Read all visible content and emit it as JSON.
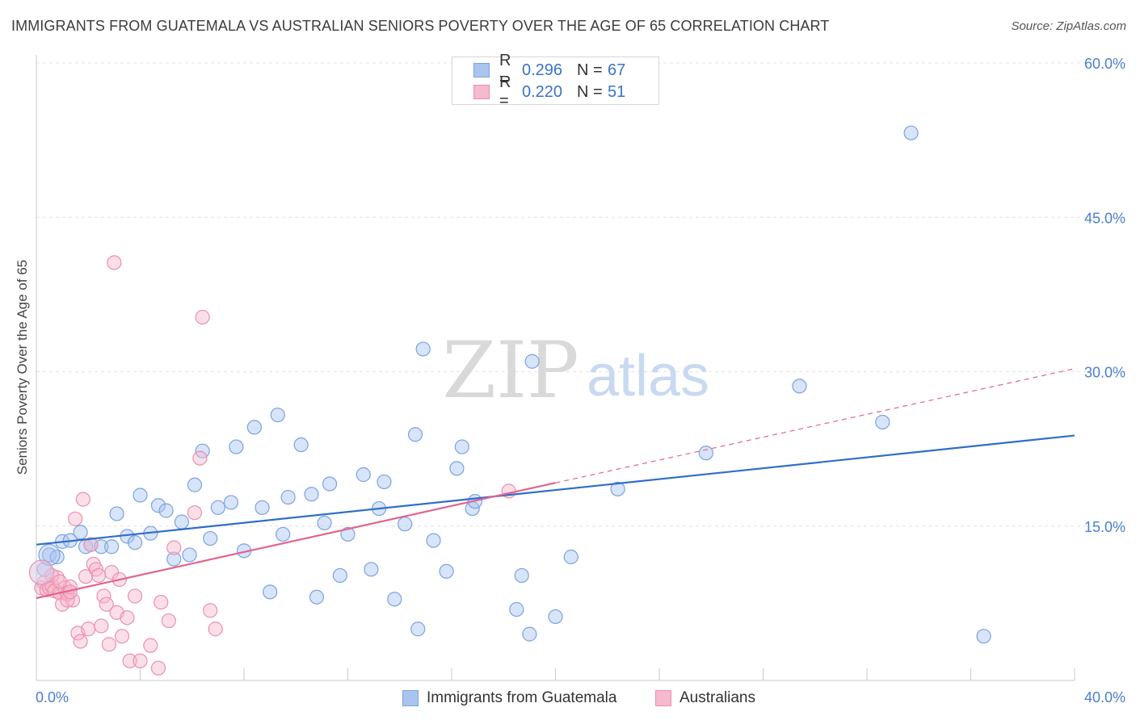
{
  "header": {
    "title": "IMMIGRANTS FROM GUATEMALA VS AUSTRALIAN SENIORS POVERTY OVER THE AGE OF 65 CORRELATION CHART",
    "source": "Source: ZipAtlas.com"
  },
  "watermark": {
    "zip": "ZIP",
    "atlas": "atlas"
  },
  "legend": {
    "rows": [
      {
        "r_label": "R =",
        "r_value": "0.296",
        "n_label": "N =",
        "n_value": "67",
        "color": "#a9c4ef",
        "border": "#7aa3e0"
      },
      {
        "r_label": "R =",
        "r_value": "0.220",
        "n_label": "N =",
        "n_value": "51",
        "color": "#f6b9cd",
        "border": "#ec8fae"
      }
    ]
  },
  "bottom_legend": [
    {
      "label": "Immigrants from Guatemala",
      "color": "#a9c4ef",
      "border": "#7aa3e0"
    },
    {
      "label": "Australians",
      "color": "#f6b9cd",
      "border": "#ec8fae"
    }
  ],
  "chart_data": {
    "type": "scatter",
    "title": "IMMIGRANTS FROM GUATEMALA VS AUSTRALIAN SENIORS POVERTY OVER THE AGE OF 65 CORRELATION CHART",
    "xlabel": "",
    "ylabel": "Seniors Poverty Over the Age of 65",
    "xlim": [
      0,
      40
    ],
    "ylim": [
      0,
      60
    ],
    "x_tick_labels": [
      {
        "value": 0,
        "label": "0.0%"
      },
      {
        "value": 40,
        "label": "40.0%"
      }
    ],
    "y_tick_labels": [
      {
        "value": 15,
        "label": "15.0%"
      },
      {
        "value": 30,
        "label": "30.0%"
      },
      {
        "value": 45,
        "label": "45.0%"
      },
      {
        "value": 60,
        "label": "60.0%"
      }
    ],
    "grid": true,
    "series": [
      {
        "name": "Immigrants from Guatemala",
        "color": "#a9c4ef",
        "stroke": "#7aa3e0",
        "line_color": "#2f6ec9",
        "trend": {
          "x0": 0,
          "y0": 13.2,
          "x1": 40,
          "y1": 23.8
        },
        "points": [
          [
            0.5,
            12.2
          ],
          [
            0.8,
            12.0
          ],
          [
            1.0,
            13.5
          ],
          [
            1.3,
            13.6
          ],
          [
            1.7,
            14.4
          ],
          [
            1.9,
            13.0
          ],
          [
            2.1,
            13.2
          ],
          [
            2.5,
            13.0
          ],
          [
            2.9,
            13.0
          ],
          [
            3.1,
            16.2
          ],
          [
            3.5,
            14.0
          ],
          [
            3.8,
            13.4
          ],
          [
            4.0,
            18.0
          ],
          [
            4.4,
            14.3
          ],
          [
            4.7,
            17.0
          ],
          [
            5.0,
            16.5
          ],
          [
            5.3,
            11.8
          ],
          [
            5.6,
            15.4
          ],
          [
            5.9,
            12.2
          ],
          [
            6.1,
            19.0
          ],
          [
            6.4,
            22.3
          ],
          [
            6.7,
            13.8
          ],
          [
            7.0,
            16.8
          ],
          [
            7.5,
            17.3
          ],
          [
            7.7,
            22.7
          ],
          [
            8.0,
            12.6
          ],
          [
            8.4,
            24.6
          ],
          [
            8.7,
            16.8
          ],
          [
            9.0,
            8.6
          ],
          [
            9.3,
            25.8
          ],
          [
            9.5,
            14.2
          ],
          [
            9.7,
            17.8
          ],
          [
            10.2,
            22.9
          ],
          [
            10.6,
            18.1
          ],
          [
            10.8,
            8.1
          ],
          [
            11.1,
            15.3
          ],
          [
            11.3,
            19.1
          ],
          [
            11.7,
            10.2
          ],
          [
            12.0,
            14.2
          ],
          [
            12.6,
            20.0
          ],
          [
            12.9,
            10.8
          ],
          [
            13.2,
            16.7
          ],
          [
            13.4,
            19.3
          ],
          [
            13.8,
            7.9
          ],
          [
            14.2,
            15.2
          ],
          [
            14.6,
            23.9
          ],
          [
            14.7,
            5.0
          ],
          [
            14.9,
            32.2
          ],
          [
            15.3,
            13.6
          ],
          [
            15.8,
            10.6
          ],
          [
            16.2,
            20.6
          ],
          [
            16.4,
            22.7
          ],
          [
            16.8,
            16.7
          ],
          [
            16.9,
            17.4
          ],
          [
            18.5,
            6.9
          ],
          [
            18.7,
            10.2
          ],
          [
            19.0,
            4.5
          ],
          [
            19.1,
            31.0
          ],
          [
            20.0,
            6.2
          ],
          [
            20.6,
            12.0
          ],
          [
            22.4,
            18.6
          ],
          [
            25.8,
            22.1
          ],
          [
            29.4,
            28.6
          ],
          [
            32.6,
            25.1
          ],
          [
            33.7,
            53.2
          ],
          [
            36.5,
            4.3
          ],
          [
            0.3,
            10.8
          ]
        ]
      },
      {
        "name": "Australians",
        "color": "#f6b9cd",
        "stroke": "#ec8fae",
        "line_color": "#e2648f",
        "trend": {
          "x0": 0,
          "y0": 8.0,
          "x1": 20,
          "y1": 19.2
        },
        "trend_extension": {
          "x0": 20,
          "y0": 19.2,
          "x1": 40,
          "y1": 30.3
        },
        "points": [
          [
            0.2,
            9.0
          ],
          [
            0.3,
            9.5
          ],
          [
            0.4,
            8.8
          ],
          [
            0.5,
            9.0
          ],
          [
            0.6,
            9.2
          ],
          [
            0.7,
            8.7
          ],
          [
            0.8,
            10.0
          ],
          [
            0.9,
            8.5
          ],
          [
            1.0,
            7.4
          ],
          [
            1.1,
            9.0
          ],
          [
            1.2,
            8.4
          ],
          [
            1.3,
            9.1
          ],
          [
            1.4,
            7.8
          ],
          [
            1.5,
            15.7
          ],
          [
            1.6,
            4.6
          ],
          [
            1.7,
            3.8
          ],
          [
            1.8,
            17.6
          ],
          [
            1.9,
            10.1
          ],
          [
            2.0,
            5.0
          ],
          [
            2.1,
            13.2
          ],
          [
            2.2,
            11.3
          ],
          [
            2.3,
            10.8
          ],
          [
            2.4,
            10.2
          ],
          [
            2.5,
            5.3
          ],
          [
            2.6,
            8.2
          ],
          [
            2.7,
            7.4
          ],
          [
            2.8,
            3.5
          ],
          [
            2.9,
            10.5
          ],
          [
            3.0,
            40.6
          ],
          [
            3.1,
            6.6
          ],
          [
            3.2,
            9.8
          ],
          [
            3.3,
            4.3
          ],
          [
            3.5,
            6.1
          ],
          [
            3.6,
            1.9
          ],
          [
            3.8,
            8.2
          ],
          [
            4.0,
            1.9
          ],
          [
            4.4,
            3.4
          ],
          [
            4.7,
            1.2
          ],
          [
            4.8,
            7.6
          ],
          [
            5.1,
            5.8
          ],
          [
            5.3,
            12.9
          ],
          [
            6.1,
            16.3
          ],
          [
            6.3,
            21.6
          ],
          [
            6.4,
            35.3
          ],
          [
            6.7,
            6.8
          ],
          [
            6.9,
            5.0
          ],
          [
            0.6,
            10.2
          ],
          [
            0.9,
            9.6
          ],
          [
            1.2,
            7.8
          ],
          [
            1.3,
            8.6
          ],
          [
            18.2,
            18.4
          ]
        ]
      }
    ]
  }
}
